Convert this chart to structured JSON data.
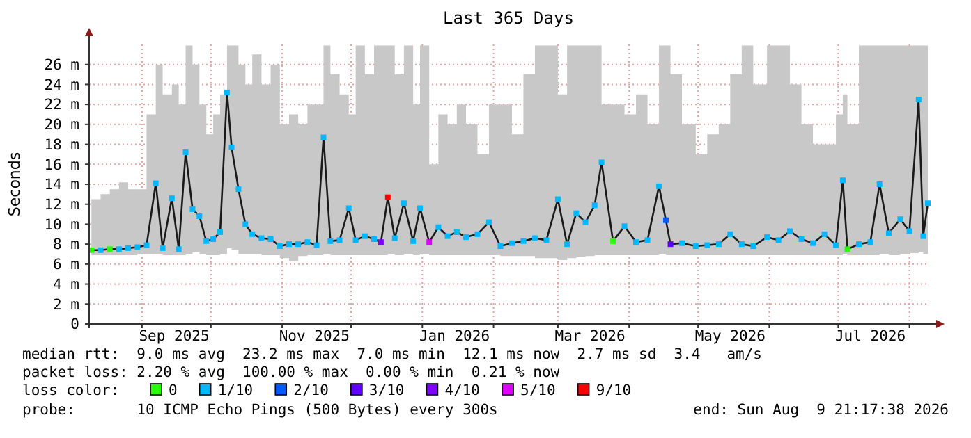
{
  "chart_data": {
    "type": "line",
    "title": "Last 365 Days",
    "ylabel": "Seconds",
    "legend_title": "loss color:",
    "legend": "bottom",
    "grid": true,
    "xlim": [
      "2025-08-09",
      "2026-08-09"
    ],
    "xticks": [
      {
        "value": "2025-09-01",
        "label": null
      },
      {
        "value": "2025-10-01",
        "label": null
      },
      {
        "value": "2025-11-01",
        "label": null
      },
      {
        "value": "2025-12-01",
        "label": null
      },
      {
        "value": "2026-01-01",
        "label": null
      },
      {
        "value": "2026-02-01",
        "label": null
      },
      {
        "value": "2026-03-01",
        "label": null
      },
      {
        "value": "2026-04-01",
        "label": null
      },
      {
        "value": "2026-05-01",
        "label": null
      },
      {
        "value": "2026-06-01",
        "label": null
      },
      {
        "value": "2026-07-01",
        "label": null
      },
      {
        "value": "2026-08-01",
        "label": null
      },
      {
        "value": "2025-09-15",
        "label": "Sep 2025"
      },
      {
        "value": "2025-11-15",
        "label": "Nov 2025"
      },
      {
        "value": "2026-01-15",
        "label": "Jan 2026"
      },
      {
        "value": "2026-03-15",
        "label": "Mar 2026"
      },
      {
        "value": "2026-05-15",
        "label": "May 2026"
      },
      {
        "value": "2026-07-15",
        "label": "Jul 2026"
      }
    ],
    "ylim": [
      0,
      28
    ],
    "yticks": [
      0,
      {
        "value": 2,
        "label": "2 m"
      },
      {
        "value": 4,
        "label": "4 m"
      },
      {
        "value": 6,
        "label": "6 m"
      },
      {
        "value": 8,
        "label": "8 m"
      },
      {
        "value": 10,
        "label": "10 m"
      },
      {
        "value": 12,
        "label": "12 m"
      },
      {
        "value": 14,
        "label": "14 m"
      },
      {
        "value": 16,
        "label": "16 m"
      },
      {
        "value": 18,
        "label": "18 m"
      },
      {
        "value": 20,
        "label": "20 m"
      },
      {
        "value": 22,
        "label": "22 m"
      },
      {
        "value": 24,
        "label": "24 m"
      },
      {
        "value": 26,
        "label": "26 m"
      }
    ],
    "annotations": [
      "median rtt:  9.0 ms avg  23.2 ms max  7.0 ms min  12.1 ms now  2.7 ms sd  3.4   am/s",
      "packet loss: 2.20 % avg  100.00 % max  0.00 % min  0.21 % now",
      "probe:       10 ICMP Echo Pings (500 Bytes) every 300s",
      "end: Sun Aug  9 21:17:38 2026"
    ],
    "series": [
      {
        "color": "#1a1a1a",
        "x": [
          "2025-08-10",
          "2025-08-14",
          "2025-08-18",
          "2025-08-22",
          "2025-08-26",
          "2025-08-30",
          "2025-09-03",
          "2025-09-07",
          "2025-09-10",
          "2025-09-14",
          "2025-09-17",
          "2025-09-20",
          "2025-09-23",
          "2025-09-26",
          "2025-09-29",
          "2025-10-02",
          "2025-10-05",
          "2025-10-08",
          "2025-10-10",
          "2025-10-13",
          "2025-10-16",
          "2025-10-19",
          "2025-10-23",
          "2025-10-27",
          "2025-10-31",
          "2025-11-04",
          "2025-11-08",
          "2025-11-12",
          "2025-11-16",
          "2025-11-19",
          "2025-11-22",
          "2025-11-26",
          "2025-11-30",
          "2025-12-03",
          "2025-12-07",
          "2025-12-11",
          "2025-12-14",
          "2025-12-17",
          "2025-12-20",
          "2025-12-24",
          "2025-12-28",
          "2025-12-31",
          "2026-01-04",
          "2026-01-08",
          "2026-01-12",
          "2026-01-16",
          "2026-01-20",
          "2026-01-25",
          "2026-01-30",
          "2026-02-04",
          "2026-02-09",
          "2026-02-14",
          "2026-02-19",
          "2026-02-24",
          "2026-03-01",
          "2026-03-05",
          "2026-03-09",
          "2026-03-13",
          "2026-03-17",
          "2026-03-20",
          "2026-03-25",
          "2026-03-30",
          "2026-04-04",
          "2026-04-09",
          "2026-04-14",
          "2026-04-17",
          "2026-04-19",
          "2026-04-24",
          "2026-04-30",
          "2026-05-05",
          "2026-05-10",
          "2026-05-15",
          "2026-05-20",
          "2026-05-25",
          "2026-05-31",
          "2026-06-05",
          "2026-06-10",
          "2026-06-15",
          "2026-06-20",
          "2026-06-25",
          "2026-06-30",
          "2026-07-03",
          "2026-07-05",
          "2026-07-10",
          "2026-07-15",
          "2026-07-19",
          "2026-07-23",
          "2026-07-28",
          "2026-08-01",
          "2026-08-05",
          "2026-08-07",
          "2026-08-09"
        ],
        "values": [
          7.4,
          7.4,
          7.5,
          7.5,
          7.6,
          7.7,
          7.9,
          14.1,
          7.6,
          12.6,
          7.5,
          17.2,
          11.5,
          10.8,
          8.3,
          8.5,
          9.2,
          23.2,
          17.7,
          13.5,
          10,
          9,
          8.6,
          8.5,
          7.8,
          8,
          8,
          8.2,
          7.9,
          18.7,
          8.3,
          8.4,
          11.6,
          8.4,
          8.8,
          8.5,
          8.2,
          12.7,
          8.6,
          12.1,
          8.3,
          11.6,
          8.2,
          9.7,
          8.8,
          9.2,
          8.7,
          9,
          10.2,
          7.8,
          8.1,
          8.3,
          8.6,
          8.4,
          12.5,
          8,
          11.1,
          10.2,
          11.9,
          16.2,
          8.3,
          9.8,
          8.2,
          8.4,
          13.8,
          10.4,
          8,
          8.1,
          7.8,
          7.9,
          8,
          9,
          8,
          7.8,
          8.7,
          8.4,
          9.3,
          8.5,
          8.1,
          9,
          7.9,
          14.4,
          7.5,
          8,
          8.2,
          14,
          9.1,
          10.5,
          9.3,
          22.5,
          8.8,
          12.1
        ],
        "upper": [
          12.5,
          13,
          13.5,
          14.2,
          13.5,
          13.5,
          21,
          26,
          23,
          24,
          22,
          27.9,
          26,
          22,
          19,
          21,
          23,
          27.9,
          27.9,
          26,
          24,
          27,
          24,
          26,
          20,
          21,
          20,
          22,
          22,
          27.9,
          25,
          23,
          21,
          27.9,
          25,
          27.9,
          27.9,
          27.9,
          25,
          27.9,
          22,
          27.9,
          16,
          21,
          20,
          22,
          20,
          17,
          22,
          22,
          19,
          25,
          27.9,
          27.9,
          23,
          27.9,
          27.9,
          27.9,
          27.9,
          22,
          22,
          21,
          23,
          20,
          27.9,
          27.9,
          25,
          20,
          17,
          19,
          20,
          25,
          27.9,
          24,
          27.9,
          27.9,
          24,
          20,
          18,
          18,
          21,
          23,
          20,
          27.9,
          27.9,
          27.9,
          27.9,
          27.9,
          27.9,
          27.9,
          27.9,
          21
        ],
        "lower": [
          6.9,
          6.9,
          6.9,
          6.9,
          6.9,
          7,
          7,
          7,
          6.9,
          6.9,
          6.9,
          7,
          7.2,
          7,
          6.9,
          6.9,
          7,
          7.6,
          7.4,
          7,
          7,
          7,
          6.9,
          6.9,
          6.6,
          6.3,
          6.8,
          6.9,
          6.9,
          7,
          6.9,
          6.9,
          6.9,
          6.9,
          6.9,
          6.9,
          6.9,
          7,
          6.9,
          7,
          6.9,
          7,
          6.9,
          6.9,
          6.9,
          6.9,
          6.9,
          6.9,
          6.9,
          6.8,
          6.8,
          6.8,
          6.6,
          6.6,
          6.4,
          6.6,
          6.7,
          6.8,
          6.9,
          6.9,
          6.9,
          6.9,
          6.9,
          6.9,
          7,
          6.9,
          6.9,
          6.9,
          6.9,
          6.9,
          6.9,
          6.9,
          6.9,
          6.9,
          6.9,
          6.9,
          6.9,
          6.9,
          6.9,
          6.9,
          6.9,
          7,
          6.9,
          6.9,
          6.9,
          7,
          6.9,
          7,
          7.1,
          7.2,
          7,
          7
        ]
      },
      {
        "type": "scatter",
        "marker": "square",
        "name": "0",
        "color": "#26ff00",
        "x": [
          "2025-08-10",
          "2025-08-18",
          "2026-03-25",
          "2026-07-05"
        ],
        "values": [
          7.4,
          7.5,
          8.3,
          7.5
        ]
      },
      {
        "type": "scatter",
        "marker": "square",
        "name": "1/10",
        "color": "#00b8ff",
        "x": [
          "2025-08-14",
          "2025-08-22",
          "2025-08-26",
          "2025-08-30",
          "2025-09-03",
          "2025-09-07",
          "2025-09-10",
          "2025-09-14",
          "2025-09-17",
          "2025-09-20",
          "2025-09-23",
          "2025-09-26",
          "2025-09-29",
          "2025-10-02",
          "2025-10-05",
          "2025-10-08",
          "2025-10-10",
          "2025-10-13",
          "2025-10-16",
          "2025-10-19",
          "2025-10-23",
          "2025-10-27",
          "2025-10-31",
          "2025-11-04",
          "2025-11-08",
          "2025-11-12",
          "2025-11-16",
          "2025-11-19",
          "2025-11-22",
          "2025-11-26",
          "2025-11-30",
          "2025-12-03",
          "2025-12-07",
          "2025-12-11",
          "2025-12-20",
          "2025-12-24",
          "2025-12-28",
          "2025-12-31",
          "2026-01-08",
          "2026-01-12",
          "2026-01-16",
          "2026-01-20",
          "2026-01-25",
          "2026-01-30",
          "2026-02-04",
          "2026-02-09",
          "2026-02-14",
          "2026-02-19",
          "2026-02-24",
          "2026-03-01",
          "2026-03-05",
          "2026-03-09",
          "2026-03-13",
          "2026-03-17",
          "2026-03-20",
          "2026-03-30",
          "2026-04-04",
          "2026-04-09",
          "2026-04-14",
          "2026-04-24",
          "2026-04-30",
          "2026-05-05",
          "2026-05-10",
          "2026-05-15",
          "2026-05-20",
          "2026-05-25",
          "2026-05-31",
          "2026-06-05",
          "2026-06-10",
          "2026-06-15",
          "2026-06-20",
          "2026-06-25",
          "2026-06-30",
          "2026-07-03",
          "2026-07-10",
          "2026-07-15",
          "2026-07-19",
          "2026-07-23",
          "2026-07-28",
          "2026-08-01",
          "2026-08-05",
          "2026-08-07",
          "2026-08-09"
        ],
        "values": [
          7.4,
          7.5,
          7.6,
          7.7,
          7.9,
          14.1,
          7.6,
          12.6,
          7.5,
          17.2,
          11.5,
          10.8,
          8.3,
          8.5,
          9.2,
          23.2,
          17.7,
          13.5,
          10,
          9,
          8.6,
          8.5,
          7.8,
          8,
          8,
          8.2,
          7.9,
          18.7,
          8.3,
          8.4,
          11.6,
          8.4,
          8.8,
          8.5,
          8.6,
          12.1,
          8.3,
          11.6,
          9.7,
          8.8,
          9.2,
          8.7,
          9,
          10.2,
          7.8,
          8.1,
          8.3,
          8.6,
          8.4,
          12.5,
          8,
          11.1,
          10.2,
          11.9,
          16.2,
          9.8,
          8.2,
          8.4,
          13.8,
          8.1,
          7.8,
          7.9,
          8,
          9,
          8,
          7.8,
          8.7,
          8.4,
          9.3,
          8.5,
          8.1,
          9,
          7.9,
          14.4,
          8,
          8.2,
          14,
          9.1,
          10.5,
          9.3,
          22.5,
          8.8,
          12.1
        ]
      },
      {
        "type": "scatter",
        "marker": "square",
        "name": "2/10",
        "color": "#0059ff",
        "x": [
          "2026-04-17"
        ],
        "values": [
          10.4
        ]
      },
      {
        "type": "scatter",
        "marker": "square",
        "name": "3/10",
        "color": "#5e00ff",
        "x": [
          "2026-04-19"
        ],
        "values": [
          8
        ]
      },
      {
        "type": "scatter",
        "marker": "square",
        "name": "4/10",
        "color": "#7e00ff",
        "x": [
          "2025-12-14"
        ],
        "values": [
          8.2
        ]
      },
      {
        "type": "scatter",
        "marker": "square",
        "name": "5/10",
        "color": "#dd00ff",
        "x": [
          "2026-01-04"
        ],
        "values": [
          8.2
        ]
      },
      {
        "type": "scatter",
        "marker": "square",
        "name": "9/10",
        "color": "#ff0000",
        "x": [
          "2025-12-17"
        ],
        "values": [
          12.7
        ]
      }
    ]
  }
}
